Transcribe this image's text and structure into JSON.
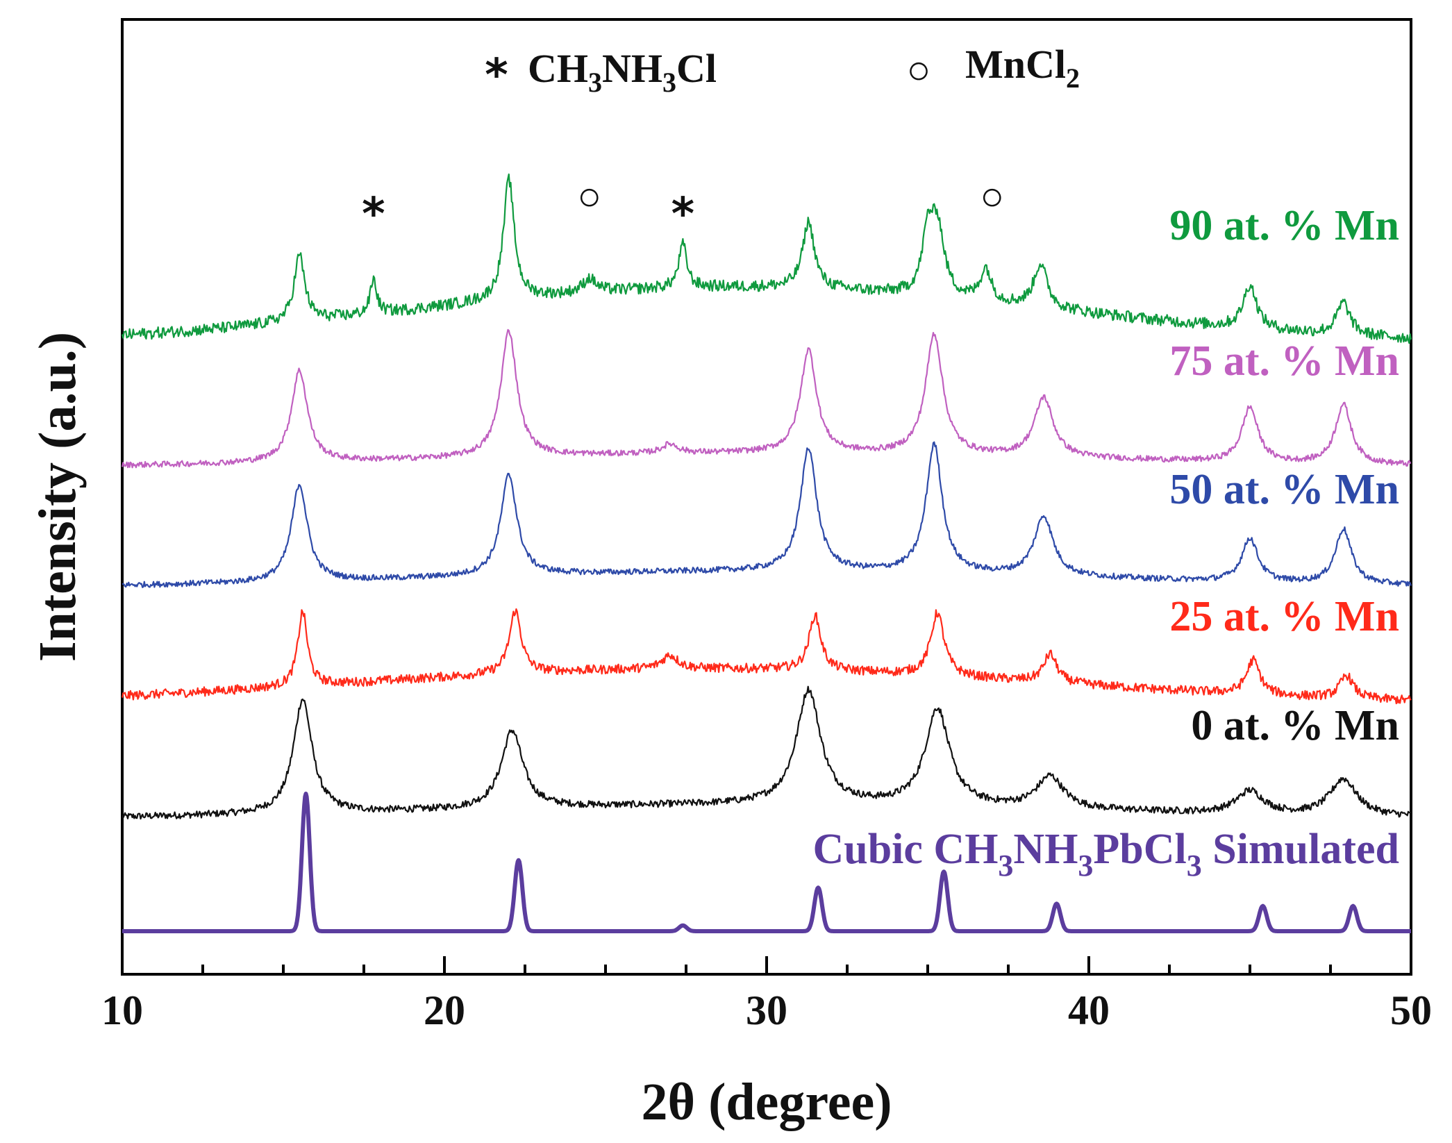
{
  "chart_data": {
    "type": "line",
    "title": "",
    "xlabel": "2θ (degree)",
    "ylabel": "Intensity (a.u.)",
    "xlim": [
      10,
      50
    ],
    "xticks": [
      "10",
      "20",
      "30",
      "40",
      "50"
    ],
    "y_scale": "stacked offset, arbitrary units",
    "legend": [
      {
        "symbol": "*",
        "label_main": "CH",
        "sub1": "3",
        "mid": "NH",
        "sub2": "3",
        "tail": "Cl",
        "name": "CH3NH3Cl"
      },
      {
        "symbol": "○",
        "label_main": "MnCl",
        "sub1": "2",
        "name": "MnCl2"
      }
    ],
    "series": [
      {
        "name": "Cubic CH3NH3PbCl3 Simulated",
        "label_parts": [
          "Cubic CH",
          "3",
          "NH",
          "3",
          "PbCl",
          "3",
          " Simulated"
        ],
        "color": "#5b3d9e",
        "baseline": 0,
        "noise": 0,
        "peaks": [
          [
            15.7,
            120,
            0.12
          ],
          [
            22.3,
            62,
            0.12
          ],
          [
            27.4,
            5,
            0.12
          ],
          [
            31.6,
            38,
            0.12
          ],
          [
            35.5,
            52,
            0.12
          ],
          [
            39.0,
            24,
            0.12
          ],
          [
            45.4,
            22,
            0.12
          ],
          [
            48.2,
            22,
            0.12
          ]
        ]
      },
      {
        "name": "0 at. % Mn",
        "color": "#111111",
        "baseline": 98,
        "noise": 3,
        "hump": [
          30,
          12,
          10
        ],
        "peaks": [
          [
            15.6,
            100,
            0.35
          ],
          [
            22.1,
            68,
            0.4
          ],
          [
            31.3,
            100,
            0.45
          ],
          [
            35.3,
            85,
            0.45
          ],
          [
            38.8,
            28,
            0.5
          ],
          [
            45.0,
            20,
            0.5
          ],
          [
            47.9,
            32,
            0.5
          ]
        ]
      },
      {
        "name": "25 at. % Mn",
        "color": "#ff2a1a",
        "baseline": 197,
        "noise": 4,
        "hump": [
          28,
          32,
          11
        ],
        "peaks": [
          [
            15.6,
            65,
            0.18
          ],
          [
            22.2,
            55,
            0.22
          ],
          [
            27.0,
            12,
            0.3
          ],
          [
            31.5,
            48,
            0.22
          ],
          [
            35.3,
            55,
            0.25
          ],
          [
            38.8,
            25,
            0.25
          ],
          [
            45.1,
            30,
            0.25
          ],
          [
            48.0,
            20,
            0.25
          ]
        ]
      },
      {
        "name": "50 at. % Mn",
        "color": "#2e4aa8",
        "baseline": 300,
        "noise": 2.5,
        "hump": [
          30,
          14,
          10
        ],
        "peaks": [
          [
            15.5,
            85,
            0.3
          ],
          [
            22.0,
            88,
            0.3
          ],
          [
            31.3,
            108,
            0.3
          ],
          [
            35.2,
            112,
            0.3
          ],
          [
            38.6,
            52,
            0.35
          ],
          [
            45.0,
            38,
            0.3
          ],
          [
            47.9,
            48,
            0.3
          ]
        ]
      },
      {
        "name": "75 at. % Mn",
        "color": "#c060c0",
        "baseline": 405,
        "noise": 2.5,
        "hump": [
          30,
          12,
          10
        ],
        "peaks": [
          [
            15.5,
            80,
            0.3
          ],
          [
            22.0,
            110,
            0.3
          ],
          [
            27.0,
            8,
            0.3
          ],
          [
            31.3,
            90,
            0.3
          ],
          [
            35.2,
            105,
            0.32
          ],
          [
            38.6,
            52,
            0.35
          ],
          [
            45.0,
            48,
            0.3
          ],
          [
            47.9,
            52,
            0.3
          ]
        ]
      },
      {
        "name": "90 at. % Mn",
        "color": "#0f9a3e",
        "baseline": 512,
        "noise": 5,
        "hump": [
          29,
          50,
          10
        ],
        "peaks": [
          [
            15.5,
            58,
            0.2
          ],
          [
            17.8,
            30,
            0.12
          ],
          [
            22.0,
            105,
            0.2
          ],
          [
            24.5,
            12,
            0.25
          ],
          [
            27.4,
            38,
            0.15
          ],
          [
            31.3,
            58,
            0.22
          ],
          [
            35.0,
            48,
            0.2
          ],
          [
            35.3,
            60,
            0.25
          ],
          [
            36.8,
            28,
            0.2
          ],
          [
            38.5,
            38,
            0.25
          ],
          [
            45.0,
            38,
            0.25
          ],
          [
            47.9,
            28,
            0.25
          ]
        ]
      }
    ],
    "peak_markers": [
      {
        "symbol": "*",
        "x": 17.8,
        "series": "90 at. % Mn"
      },
      {
        "symbol": "○",
        "x": 24.5,
        "series": "90 at. % Mn"
      },
      {
        "symbol": "*",
        "x": 27.4,
        "series": "90 at. % Mn"
      },
      {
        "symbol": "○",
        "x": 37.0,
        "series": "90 at. % Mn"
      }
    ]
  }
}
